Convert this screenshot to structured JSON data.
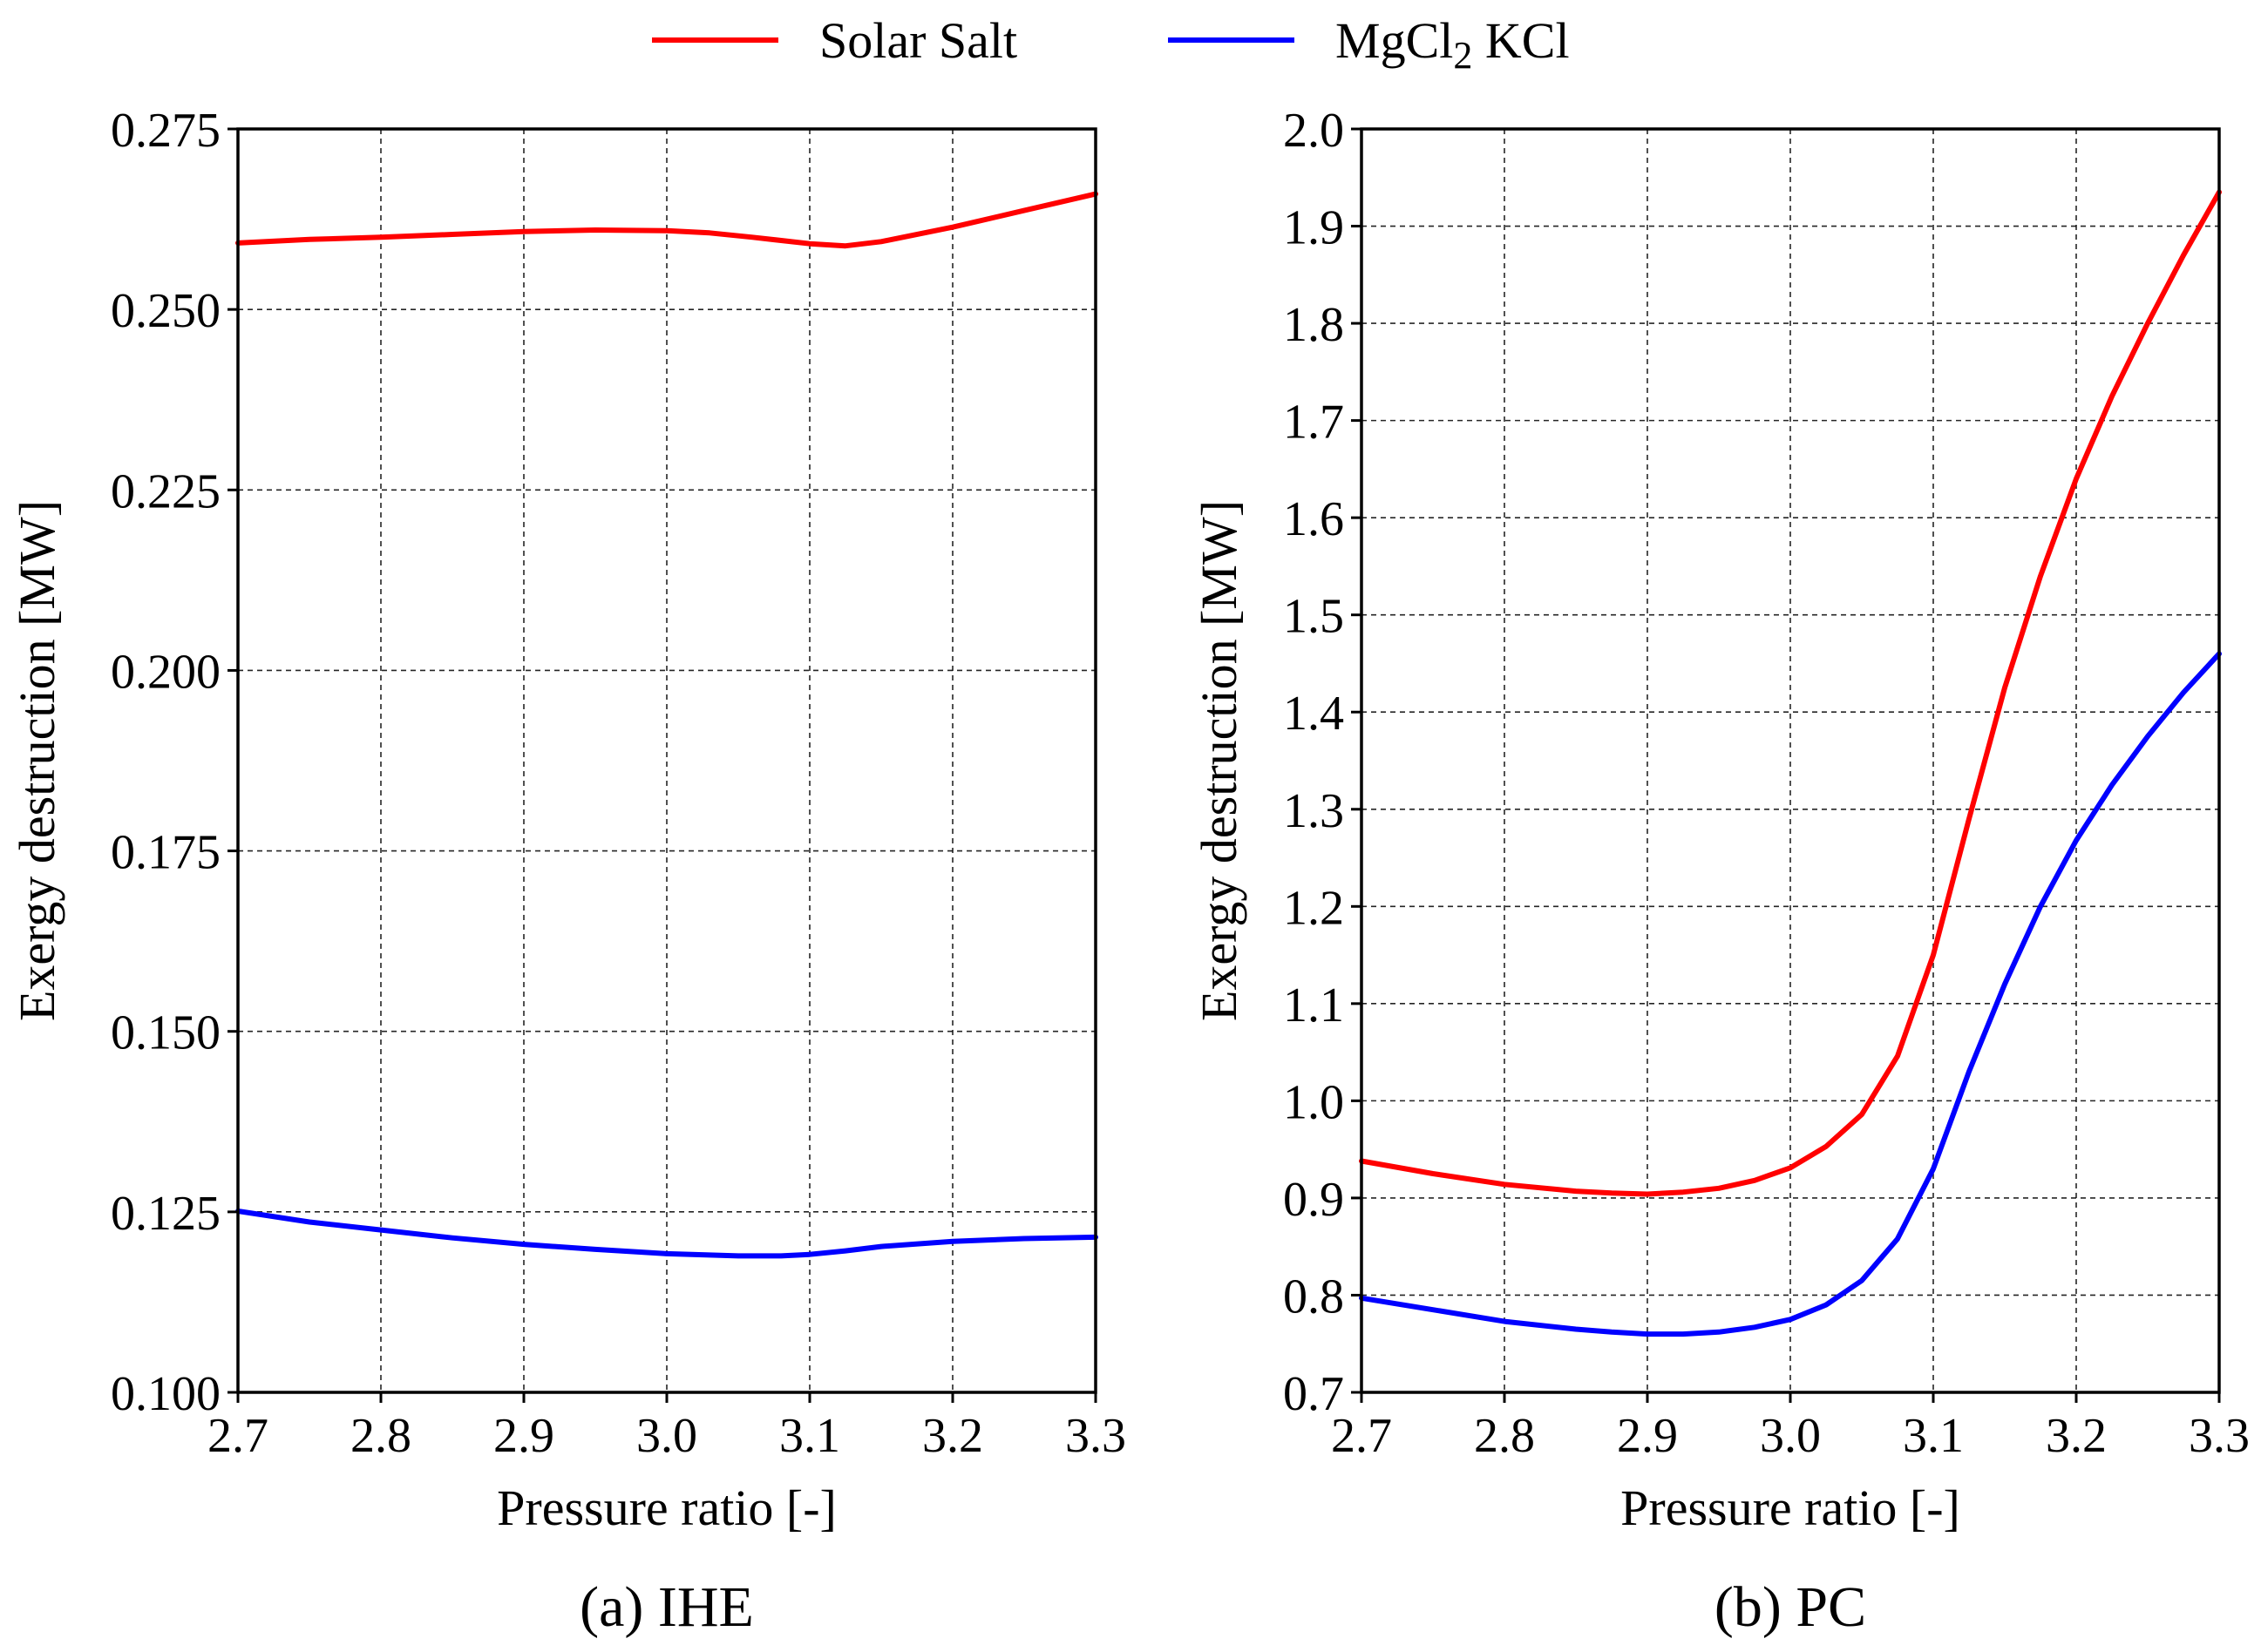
{
  "legend": {
    "entries": [
      {
        "label": "Solar Salt",
        "color": "#ff0000"
      },
      {
        "label_main": "MgCl",
        "label_sub": "2",
        "label_rest": " KCl",
        "color": "#0000ff"
      }
    ]
  },
  "chart_data": [
    {
      "type": "line",
      "caption": "(a) IHE",
      "xlabel": "Pressure ratio [-]",
      "ylabel": "Exergy destruction [MW]",
      "xlim": [
        2.7,
        3.3
      ],
      "ylim": [
        0.1,
        0.275
      ],
      "xticks": [
        2.7,
        2.8,
        2.9,
        3.0,
        3.1,
        3.2,
        3.3
      ],
      "xtick_labels": [
        "2.7",
        "2.8",
        "2.9",
        "3.0",
        "3.1",
        "3.2",
        "3.3"
      ],
      "yticks": [
        0.1,
        0.125,
        0.15,
        0.175,
        0.2,
        0.225,
        0.25,
        0.275
      ],
      "ytick_labels": [
        "0.100",
        "0.125",
        "0.150",
        "0.175",
        "0.200",
        "0.225",
        "0.250",
        "0.275"
      ],
      "grid": true,
      "series": [
        {
          "name": "Solar Salt",
          "color": "#ff0000",
          "x": [
            2.7,
            2.75,
            2.8,
            2.85,
            2.9,
            2.95,
            3.0,
            3.03,
            3.06,
            3.1,
            3.125,
            3.15,
            3.2,
            3.25,
            3.3
          ],
          "y": [
            0.2592,
            0.2597,
            0.26,
            0.2604,
            0.2608,
            0.261,
            0.2609,
            0.2606,
            0.26,
            0.2591,
            0.2588,
            0.2594,
            0.2614,
            0.2637,
            0.266
          ]
        },
        {
          "name": "MgCl2 KCl",
          "color": "#0000ff",
          "x": [
            2.7,
            2.75,
            2.8,
            2.85,
            2.9,
            2.95,
            3.0,
            3.05,
            3.08,
            3.1,
            3.125,
            3.15,
            3.2,
            3.25,
            3.3
          ],
          "y": [
            0.1251,
            0.1236,
            0.1225,
            0.1214,
            0.1205,
            0.1198,
            0.1192,
            0.1189,
            0.1189,
            0.1191,
            0.1196,
            0.1202,
            0.1209,
            0.1213,
            0.1215
          ]
        }
      ]
    },
    {
      "type": "line",
      "caption": "(b) PC",
      "xlabel": "Pressure ratio [-]",
      "ylabel": "Exergy destruction [MW]",
      "xlim": [
        2.7,
        3.3
      ],
      "ylim": [
        0.7,
        2.0
      ],
      "xticks": [
        2.7,
        2.8,
        2.9,
        3.0,
        3.1,
        3.2,
        3.3
      ],
      "xtick_labels": [
        "2.7",
        "2.8",
        "2.9",
        "3.0",
        "3.1",
        "3.2",
        "3.3"
      ],
      "yticks": [
        0.7,
        0.8,
        0.9,
        1.0,
        1.1,
        1.2,
        1.3,
        1.4,
        1.5,
        1.6,
        1.7,
        1.8,
        1.9,
        2.0
      ],
      "ytick_labels": [
        "0.7",
        "0.8",
        "0.9",
        "1.0",
        "1.1",
        "1.2",
        "1.3",
        "1.4",
        "1.5",
        "1.6",
        "1.7",
        "1.8",
        "1.9",
        "2.0"
      ],
      "grid": true,
      "series": [
        {
          "name": "Solar Salt",
          "color": "#ff0000",
          "x": [
            2.7,
            2.75,
            2.8,
            2.85,
            2.875,
            2.9,
            2.925,
            2.95,
            2.975,
            3.0,
            3.025,
            3.05,
            3.075,
            3.1,
            3.125,
            3.15,
            3.175,
            3.2,
            3.225,
            3.25,
            3.275,
            3.3
          ],
          "y": [
            0.938,
            0.925,
            0.914,
            0.907,
            0.905,
            0.904,
            0.906,
            0.91,
            0.918,
            0.931,
            0.953,
            0.986,
            1.046,
            1.15,
            1.29,
            1.425,
            1.54,
            1.64,
            1.725,
            1.8,
            1.87,
            1.935
          ]
        },
        {
          "name": "MgCl2 KCl",
          "color": "#0000ff",
          "x": [
            2.7,
            2.75,
            2.8,
            2.85,
            2.875,
            2.9,
            2.925,
            2.95,
            2.975,
            3.0,
            3.025,
            3.05,
            3.075,
            3.1,
            3.125,
            3.15,
            3.175,
            3.2,
            3.225,
            3.25,
            3.275,
            3.3
          ],
          "y": [
            0.797,
            0.785,
            0.773,
            0.765,
            0.762,
            0.76,
            0.76,
            0.762,
            0.767,
            0.775,
            0.79,
            0.815,
            0.858,
            0.93,
            1.03,
            1.12,
            1.2,
            1.268,
            1.325,
            1.375,
            1.42,
            1.46
          ]
        }
      ]
    }
  ]
}
